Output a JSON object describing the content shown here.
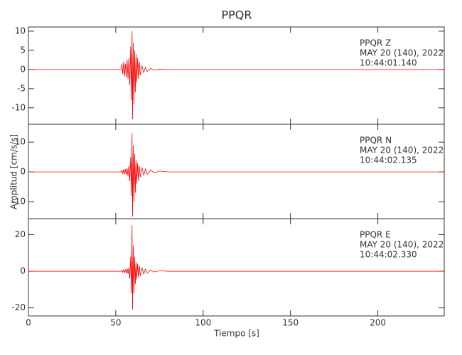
{
  "chart_data": [
    {
      "type": "line",
      "title": "PPQR",
      "annotations": [
        "PPQR   Z",
        "MAY 20 (140), 2022",
        "10:44:01.140"
      ],
      "xlim": [
        0,
        238
      ],
      "ylim": [
        -14.3,
        11.1
      ],
      "yticks": [
        -10,
        -5,
        0,
        5,
        10
      ],
      "x": [
        0,
        53,
        53.5,
        54,
        54.5,
        55,
        55.5,
        56,
        56.5,
        57,
        57.5,
        58,
        58.5,
        59,
        59.3,
        59.6,
        60,
        60.4,
        60.8,
        61.2,
        61.6,
        62,
        62.5,
        63,
        63.5,
        64,
        65,
        66,
        67,
        68,
        70,
        72,
        75,
        80,
        238
      ],
      "values": [
        0,
        0,
        1.5,
        -1.2,
        2,
        -1.8,
        1.5,
        -2,
        2.5,
        -2.5,
        3,
        -4,
        6,
        -8,
        10,
        -13,
        7,
        -9,
        5,
        -6,
        4,
        -3.5,
        3,
        -2.5,
        2,
        -1.5,
        1,
        -0.8,
        0.6,
        -0.5,
        0.3,
        -0.2,
        0.1,
        0,
        0
      ],
      "color": "#ff0000"
    },
    {
      "type": "line",
      "y_label": "Amplitud [cm/s/s]",
      "annotations": [
        "PPQR   N",
        "MAY 20 (140), 2022",
        "10:44:02.135"
      ],
      "xlim": [
        0,
        238
      ],
      "ylim": [
        -15.7,
        16
      ],
      "yticks": [
        -10,
        0,
        10
      ],
      "x": [
        0,
        53,
        53.5,
        54,
        54.5,
        55,
        55.5,
        56,
        56.5,
        57,
        57.5,
        58,
        58.5,
        59,
        59.3,
        59.6,
        60,
        60.4,
        60.8,
        61.2,
        61.6,
        62,
        62.5,
        63,
        63.5,
        64,
        65,
        66,
        67,
        68,
        70,
        72,
        75,
        80,
        238
      ],
      "values": [
        0,
        0,
        0.5,
        -0.5,
        0.8,
        -0.8,
        1,
        -1,
        1.2,
        -1.5,
        2,
        -3,
        5,
        -8,
        13,
        -15,
        9,
        -10,
        6,
        -7,
        4,
        -4,
        3,
        -3,
        2,
        -1.8,
        1.5,
        -1.2,
        1,
        -0.8,
        0.6,
        -0.4,
        0.3,
        0,
        0
      ],
      "color": "#ff0000"
    },
    {
      "type": "line",
      "x_label": "Tiempo [s]",
      "annotations": [
        "PPQR   E",
        "MAY 20 (140), 2022",
        "10:44:02.330"
      ],
      "xlim": [
        0,
        238
      ],
      "xticks": [
        0,
        50,
        100,
        150,
        200
      ],
      "ylim": [
        -24.4,
        28.7
      ],
      "yticks": [
        -20,
        0,
        20
      ],
      "x": [
        0,
        53,
        53.5,
        54,
        54.5,
        55,
        55.5,
        56,
        56.5,
        57,
        57.5,
        58,
        58.5,
        59,
        59.3,
        59.6,
        60,
        60.4,
        60.8,
        61.2,
        61.6,
        62,
        62.5,
        63,
        63.5,
        64,
        65,
        66,
        67,
        68,
        70,
        72,
        75,
        80,
        238
      ],
      "values": [
        0,
        0,
        0.5,
        -0.5,
        0.8,
        -0.8,
        1,
        -1,
        1.5,
        -1.5,
        2,
        -4,
        8,
        -12,
        25,
        -21,
        14,
        -12,
        8,
        -7,
        5,
        -4.5,
        4,
        -3.5,
        3,
        -2.5,
        2,
        -1.5,
        1.2,
        -1,
        0.6,
        -0.4,
        0.3,
        0,
        0
      ],
      "color": "#ff0000"
    }
  ]
}
